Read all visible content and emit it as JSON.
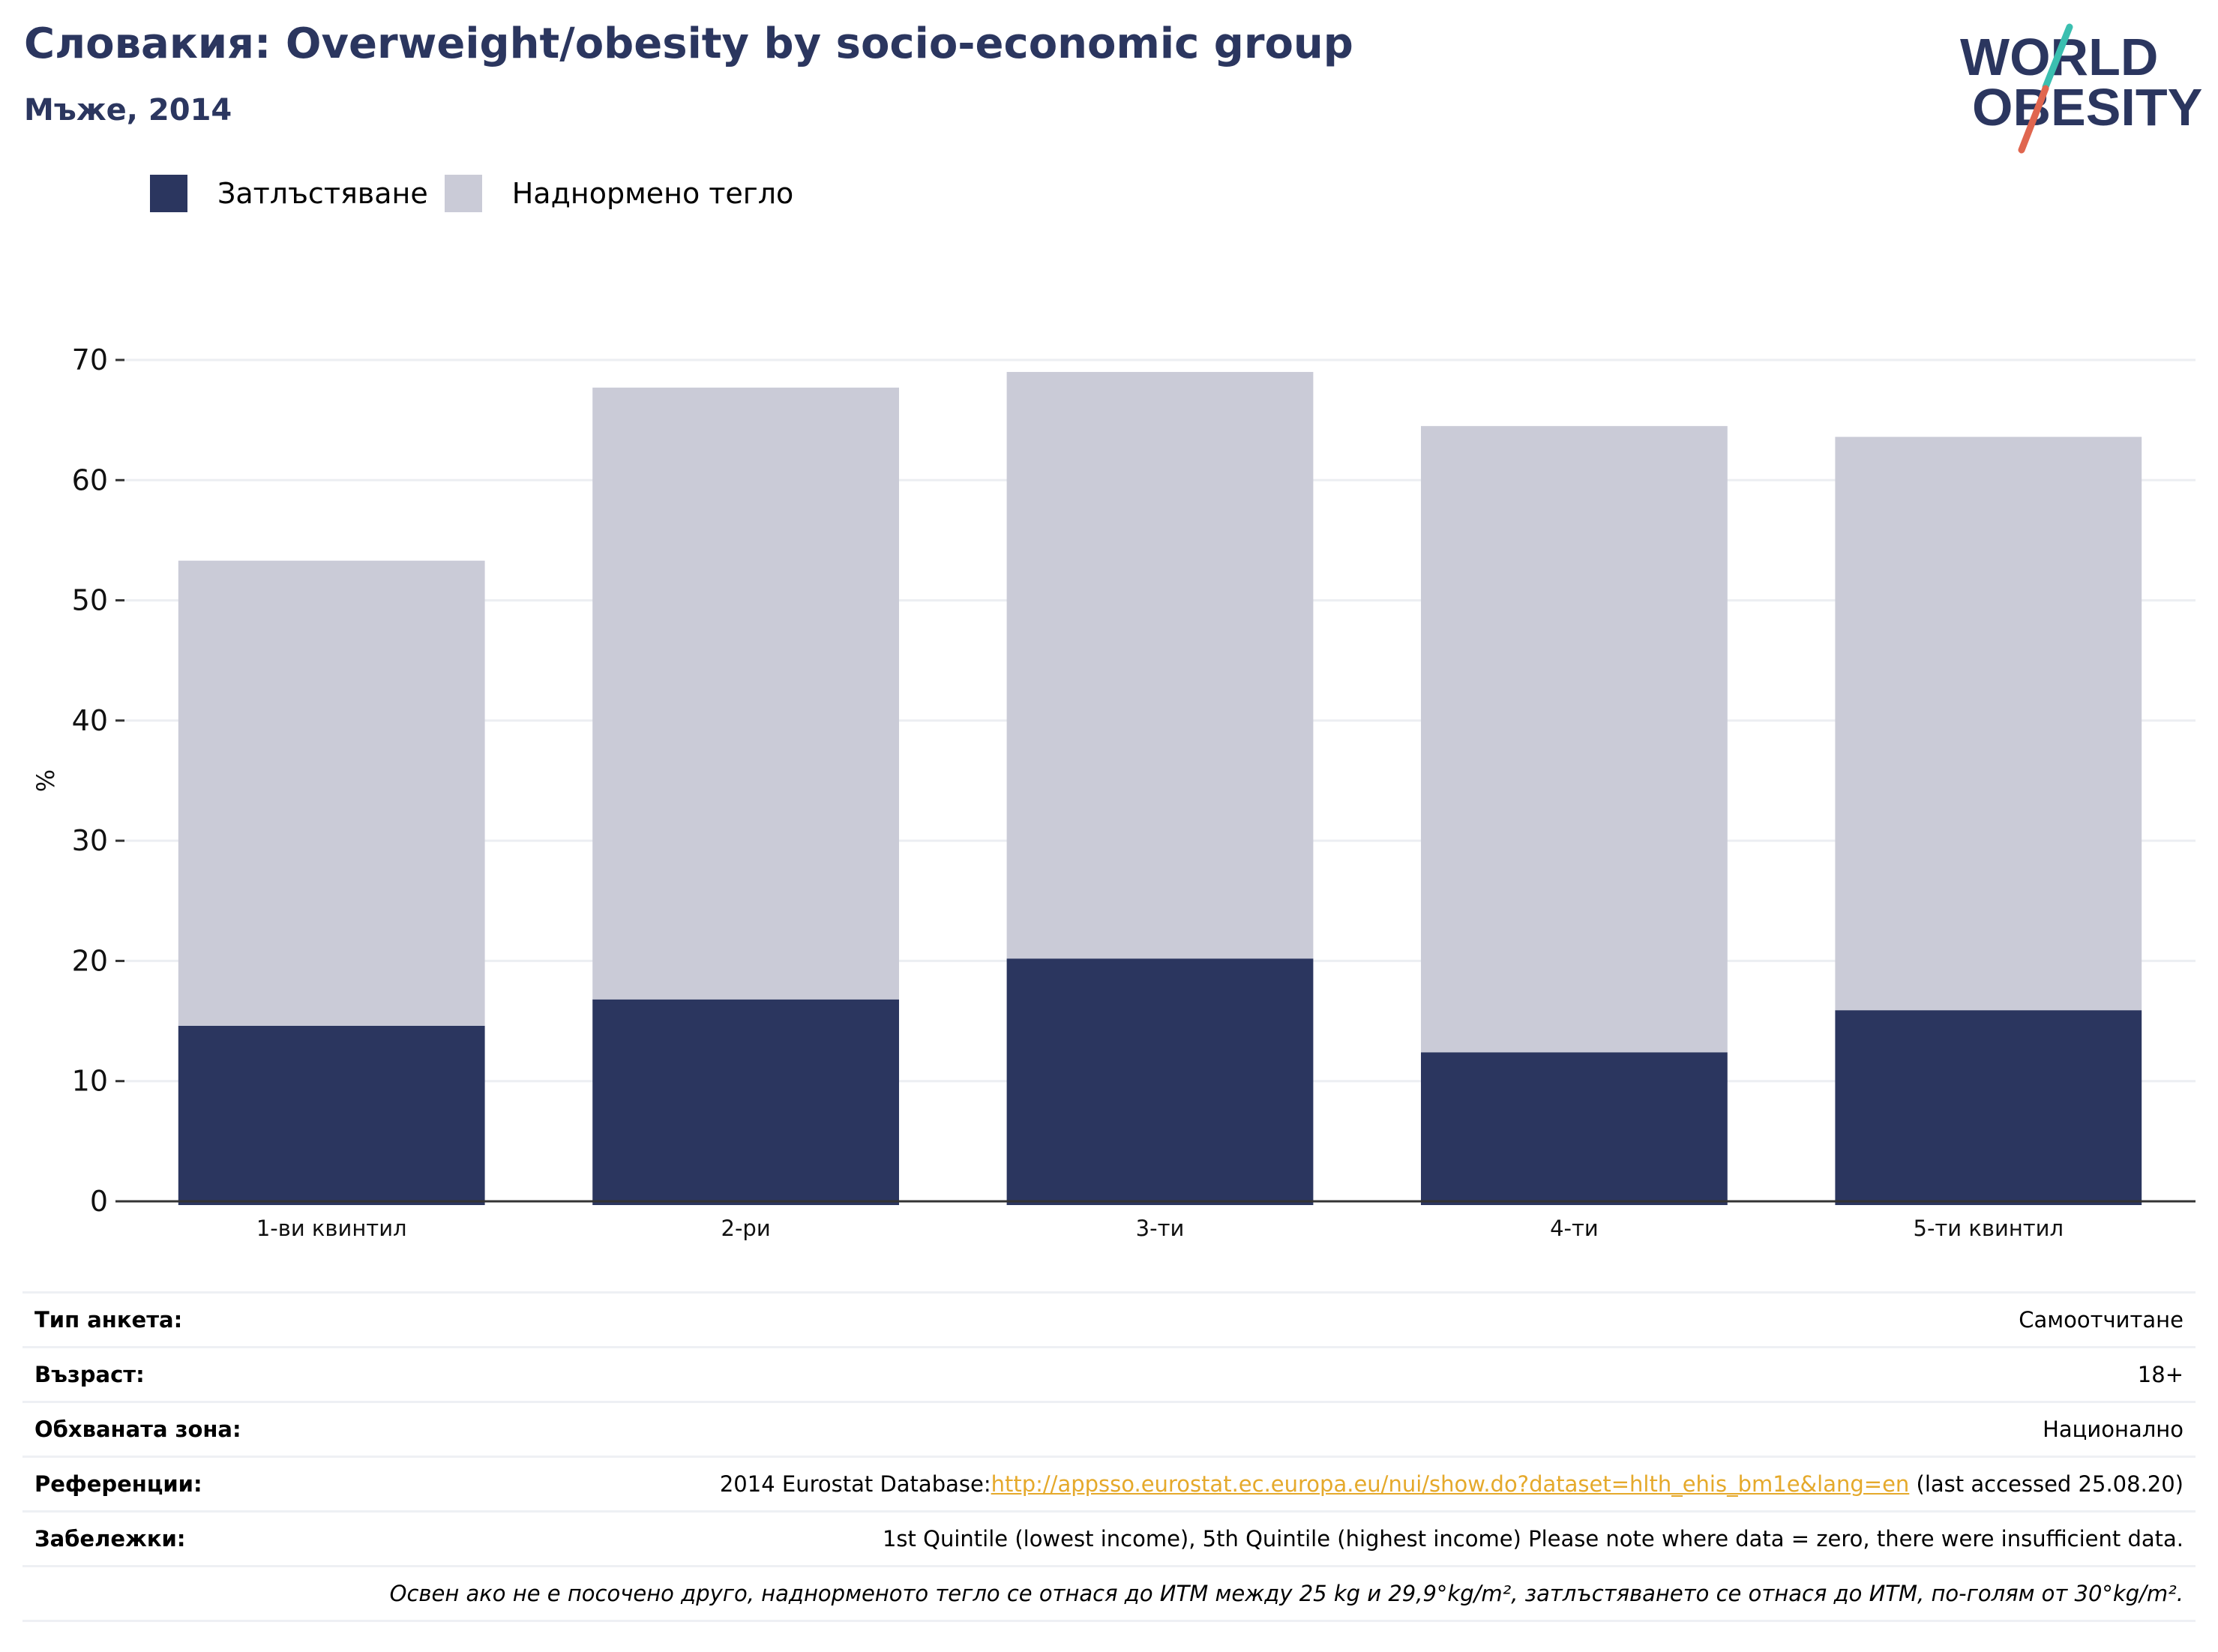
{
  "header": {
    "title": "Словакия: Overweight/obesity by socio-economic group",
    "subtitle": "Мъже, 2014"
  },
  "logo": {
    "line1": "WORLD",
    "line2": "OBESITY",
    "accent_teal": "#3bbfb0",
    "accent_red": "#e0664f",
    "text_color": "#2b365f"
  },
  "legend": [
    {
      "label": "Затлъстяване",
      "color": "#2b365f"
    },
    {
      "label": "Наднормено тегло",
      "color": "#cacbd7"
    }
  ],
  "chart_data": {
    "type": "bar",
    "stacked": true,
    "categories": [
      "1-ви квинтил",
      "2-ри",
      "3-ти",
      "4-ти",
      "5-ти квинтил"
    ],
    "series": [
      {
        "name": "Затлъстяване",
        "color": "#2b365f",
        "values": [
          14.6,
          16.8,
          20.2,
          12.4,
          15.9
        ]
      },
      {
        "name": "Наднормено тегло",
        "color": "#cacbd7",
        "values": [
          38.7,
          50.9,
          48.8,
          52.1,
          47.7
        ]
      }
    ],
    "totals": [
      53.3,
      67.7,
      69.0,
      64.5,
      63.6
    ],
    "ylabel": "%",
    "ylim": [
      0,
      70
    ],
    "yticks": [
      "0",
      "10",
      "20",
      "30",
      "40",
      "50",
      "60",
      "70"
    ],
    "grid": true,
    "legend_position": "top-left"
  },
  "info": {
    "rows": [
      {
        "label": "Тип анкета:",
        "value": "Самоотчитане"
      },
      {
        "label": "Възраст:",
        "value": "18+"
      },
      {
        "label": "Обхваната зона:",
        "value": "Национално"
      }
    ],
    "references": {
      "label": "Референции:",
      "prefix": "2014 Eurostat Database:",
      "link": "http://appsso.eurostat.ec.europa.eu/nui/show.do?dataset=hlth_ehis_bm1e&lang=en",
      "suffix": " (last accessed 25.08.20)"
    },
    "notes": {
      "label": "Забележки:",
      "value": "1st Quintile (lowest income), 5th Quintile (highest income) Please note where data = zero, there were insufficient data."
    },
    "footnote": "Освен ако не е посочено друго, наднорменото тегло се отнася до ИТМ между 25 kg и 29,9°kg/m², затлъстяването се отнася до ИТМ, по-голям от 30°kg/m²."
  }
}
